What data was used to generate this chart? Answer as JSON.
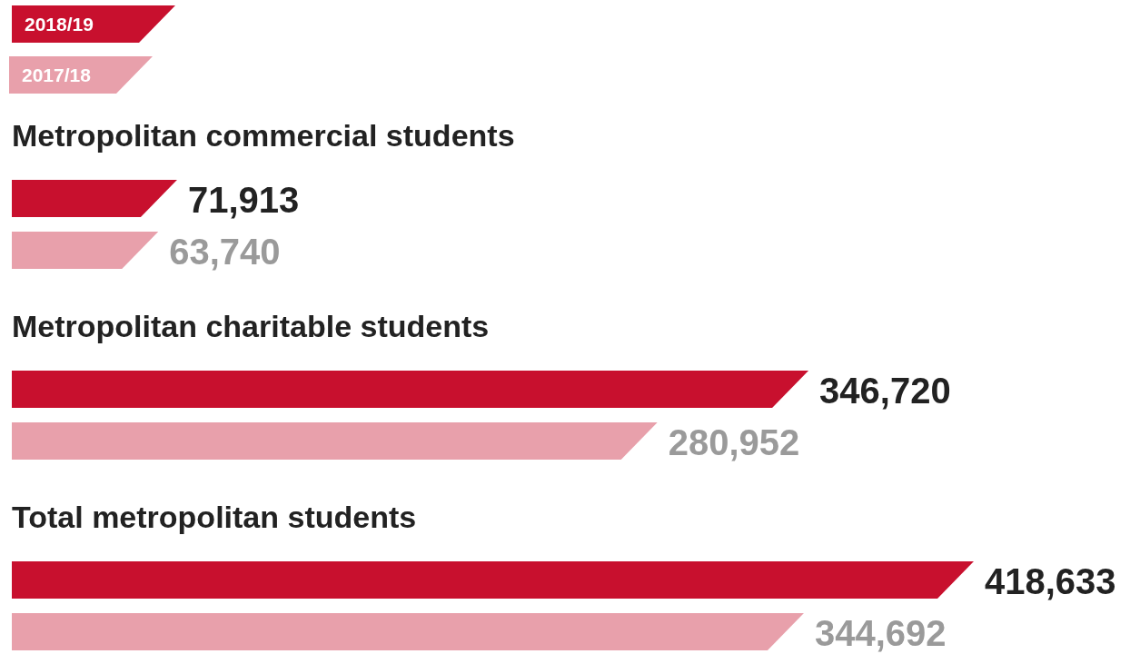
{
  "chart_data": {
    "type": "bar",
    "orientation": "horizontal",
    "categories": [
      "Metropolitan commercial students",
      "Metropolitan charitable students",
      "Total metropolitan students"
    ],
    "series": [
      {
        "name": "2018/19",
        "color": "#c8102e",
        "values": [
          71913,
          346720,
          418633
        ],
        "value_labels": [
          "71,913",
          "346,720",
          "418,633"
        ]
      },
      {
        "name": "2017/18",
        "color": "#e8a0ab",
        "values": [
          63740,
          280952,
          344692
        ],
        "value_labels": [
          "63,740",
          "280,952",
          "344,692"
        ]
      }
    ],
    "legend": "top left"
  }
}
